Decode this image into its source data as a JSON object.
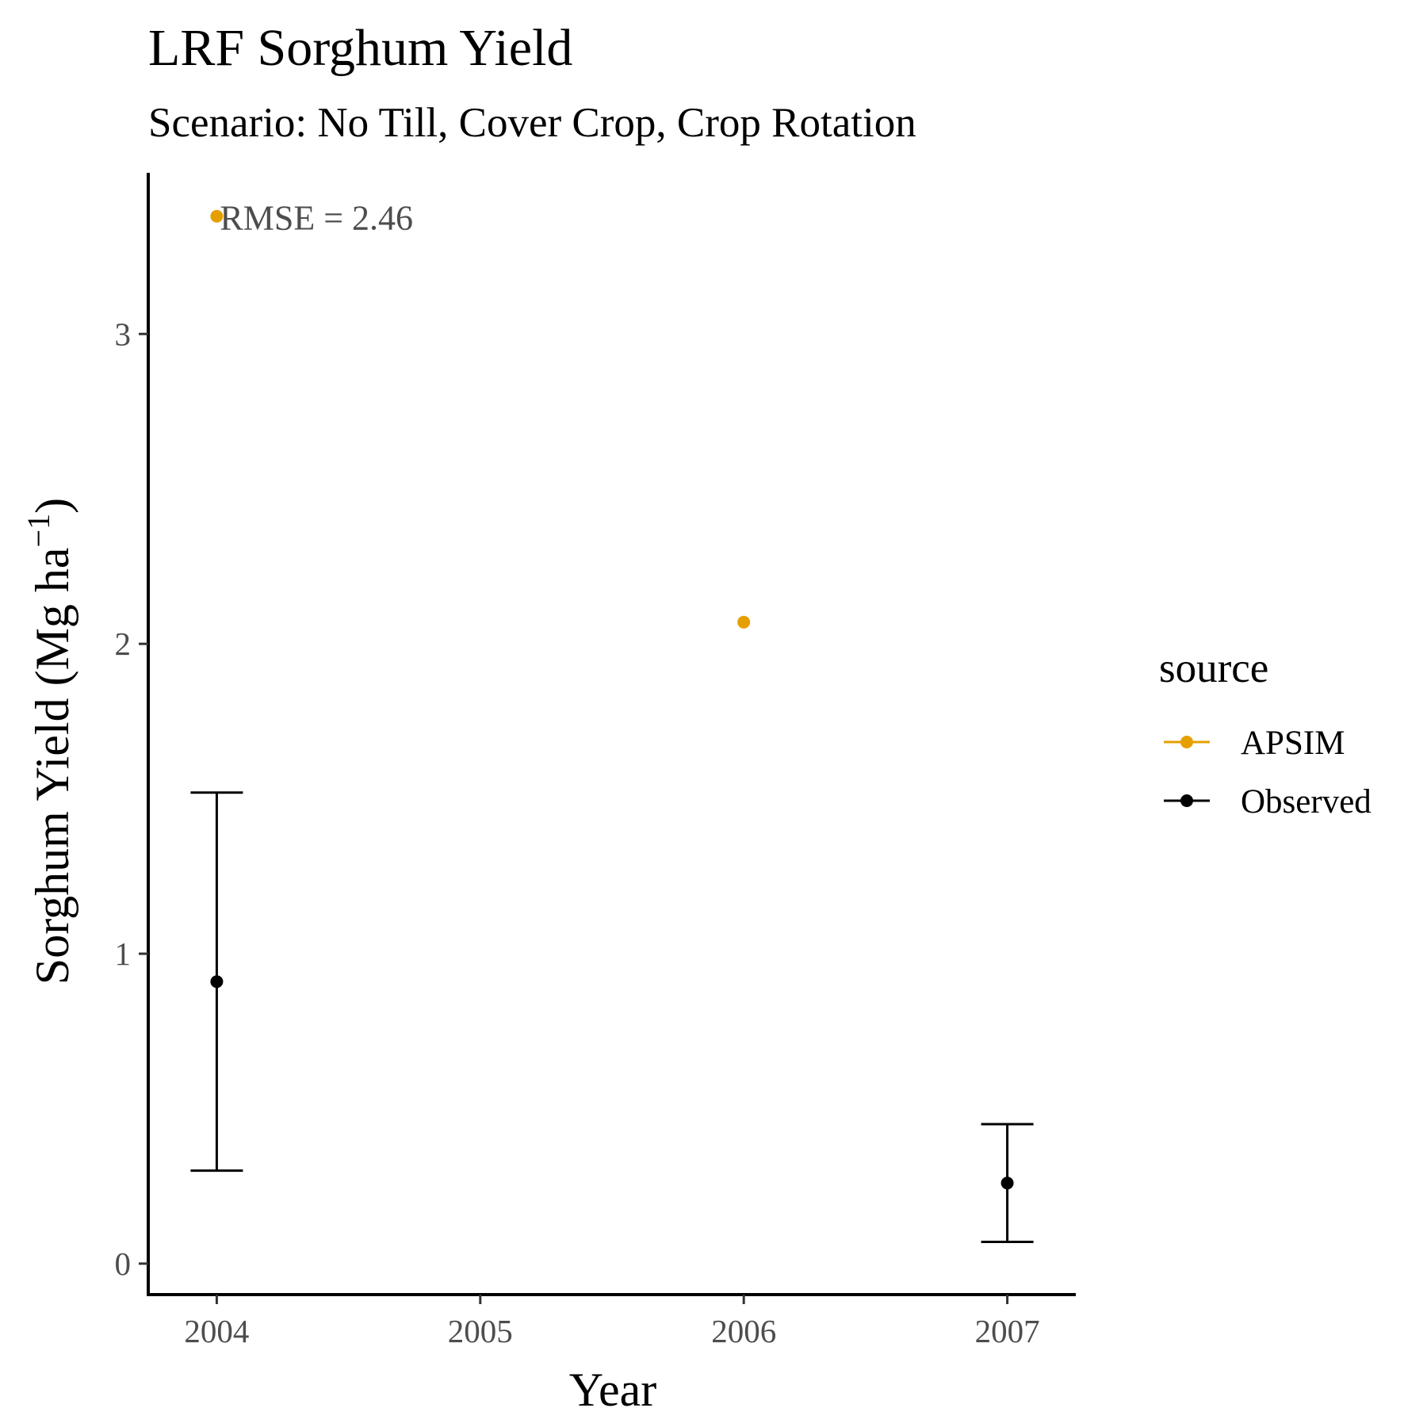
{
  "chart_data": {
    "type": "scatter",
    "title": "LRF Sorghum Yield",
    "subtitle": "Scenario: No Till, Cover Crop, Crop Rotation",
    "xlabel": "Year",
    "ylabel": "Sorghum Yield (Mg ha",
    "ylabel_unit_exponent": "−1",
    "ylabel_close": ")",
    "x_ticks": [
      2004,
      2005,
      2006,
      2007
    ],
    "y_ticks": [
      0,
      1,
      2,
      3
    ],
    "xlim": [
      2003.74,
      2007.26
    ],
    "ylim": [
      -0.1,
      3.52
    ],
    "grid": false,
    "legend": {
      "title": "source",
      "position": "right",
      "entries": [
        "APSIM",
        "Observed"
      ]
    },
    "series": [
      {
        "name": "APSIM",
        "color": "#E69F00",
        "points": [
          {
            "x": 2004,
            "y": 3.38
          },
          {
            "x": 2006,
            "y": 2.07
          }
        ]
      },
      {
        "name": "Observed",
        "color": "#000000",
        "points": [
          {
            "x": 2004,
            "y": 0.91,
            "ymin": 0.3,
            "ymax": 1.52
          },
          {
            "x": 2007,
            "y": 0.26,
            "ymin": 0.07,
            "ymax": 0.45
          }
        ]
      }
    ],
    "annotations": [
      {
        "text": "RMSE = 2.46",
        "x": 2004,
        "y": 3.38
      }
    ]
  }
}
